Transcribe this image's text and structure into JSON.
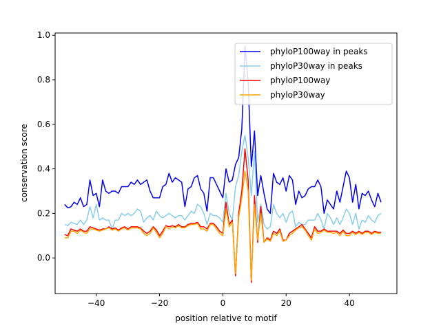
{
  "chart_data": {
    "type": "line",
    "title": "",
    "xlabel": "position relative to motif",
    "ylabel": "conservation score",
    "xlim": [
      -53,
      55
    ],
    "ylim": [
      -0.16,
      1.01
    ],
    "grid": false,
    "legend_position": "top-right",
    "x_ticks": [
      -40,
      -20,
      0,
      20,
      40
    ],
    "y_ticks": [
      0.0,
      0.2,
      0.4,
      0.6,
      0.8,
      1.0
    ],
    "x_tick_labels": [
      "−40",
      "−20",
      "0",
      "20",
      "40"
    ],
    "y_tick_labels": [
      "0.0",
      "0.2",
      "0.4",
      "0.6",
      "0.8",
      "1.0"
    ],
    "x_start": -50,
    "x_step": 1,
    "series": [
      {
        "name": "phyloP100way in peaks",
        "color": "#0000ee",
        "values": [
          0.24,
          0.225,
          0.23,
          0.25,
          0.24,
          0.27,
          0.23,
          0.24,
          0.35,
          0.28,
          0.29,
          0.23,
          0.35,
          0.3,
          0.29,
          0.3,
          0.3,
          0.29,
          0.32,
          0.32,
          0.32,
          0.34,
          0.33,
          0.35,
          0.33,
          0.34,
          0.35,
          0.3,
          0.27,
          0.27,
          0.27,
          0.32,
          0.33,
          0.38,
          0.34,
          0.36,
          0.35,
          0.34,
          0.23,
          0.31,
          0.32,
          0.36,
          0.37,
          0.31,
          0.29,
          0.21,
          0.36,
          0.36,
          0.33,
          0.3,
          0.27,
          0.4,
          0.34,
          0.35,
          0.42,
          0.45,
          0.58,
          0.95,
          0.79,
          0.41,
          0.57,
          0.28,
          0.37,
          0.29,
          0.22,
          0.2,
          0.38,
          0.34,
          0.33,
          0.36,
          0.3,
          0.37,
          0.35,
          0.24,
          0.3,
          0.27,
          0.28,
          0.31,
          0.32,
          0.32,
          0.35,
          0.32,
          0.2,
          0.26,
          0.24,
          0.22,
          0.3,
          0.25,
          0.32,
          0.39,
          0.36,
          0.25,
          0.33,
          0.22,
          0.29,
          0.28,
          0.3,
          0.26,
          0.23,
          0.29,
          0.25
        ],
        "values_note": "x = -50..50"
      },
      {
        "name": "phyloP30way in peaks",
        "color": "#87ceeb",
        "values": [
          0.15,
          0.145,
          0.16,
          0.155,
          0.15,
          0.17,
          0.15,
          0.17,
          0.23,
          0.18,
          0.24,
          0.17,
          0.18,
          0.17,
          0.17,
          0.13,
          0.17,
          0.17,
          0.2,
          0.19,
          0.2,
          0.19,
          0.2,
          0.22,
          0.21,
          0.16,
          0.18,
          0.19,
          0.17,
          0.21,
          0.19,
          0.18,
          0.19,
          0.2,
          0.19,
          0.18,
          0.19,
          0.19,
          0.17,
          0.19,
          0.21,
          0.2,
          0.24,
          0.23,
          0.2,
          0.15,
          0.2,
          0.19,
          0.19,
          0.18,
          0.16,
          0.29,
          0.2,
          0.17,
          0.32,
          0.37,
          0.48,
          0.55,
          0.45,
          0.28,
          0.48,
          0.16,
          0.24,
          0.15,
          0.13,
          0.14,
          0.24,
          0.2,
          0.18,
          0.2,
          0.16,
          0.2,
          0.21,
          0.14,
          0.16,
          0.15,
          0.15,
          0.17,
          0.17,
          0.17,
          0.2,
          0.17,
          0.13,
          0.2,
          0.18,
          0.15,
          0.18,
          0.15,
          0.18,
          0.22,
          0.2,
          0.15,
          0.2,
          0.13,
          0.17,
          0.16,
          0.19,
          0.17,
          0.16,
          0.19,
          0.2
        ],
        "values_note": "x = -50..50"
      },
      {
        "name": "phyloP100way",
        "color": "#ff0000",
        "values": [
          0.105,
          0.1,
          0.13,
          0.125,
          0.12,
          0.13,
          0.12,
          0.12,
          0.14,
          0.135,
          0.13,
          0.125,
          0.13,
          0.13,
          0.14,
          0.13,
          0.135,
          0.125,
          0.135,
          0.14,
          0.13,
          0.14,
          0.14,
          0.14,
          0.135,
          0.12,
          0.11,
          0.12,
          0.14,
          0.125,
          0.1,
          0.12,
          0.145,
          0.14,
          0.145,
          0.14,
          0.15,
          0.14,
          0.14,
          0.15,
          0.155,
          0.155,
          0.16,
          0.14,
          0.14,
          0.13,
          0.155,
          0.155,
          0.14,
          0.12,
          0.11,
          0.25,
          0.15,
          0.17,
          -0.08,
          0.2,
          0.3,
          0.49,
          0.35,
          -0.11,
          0.28,
          0.07,
          0.23,
          0.07,
          0.09,
          0.08,
          0.12,
          0.11,
          0.13,
          0.08,
          0.08,
          0.11,
          0.12,
          0.13,
          0.14,
          0.15,
          0.13,
          0.11,
          0.09,
          0.14,
          0.12,
          0.12,
          0.13,
          0.12,
          0.12,
          0.12,
          0.12,
          0.11,
          0.125,
          0.11,
          0.11,
          0.12,
          0.11,
          0.12,
          0.11,
          0.12,
          0.12,
          0.11,
          0.12,
          0.115,
          0.115
        ],
        "values_note": "x = -50..50"
      },
      {
        "name": "phyloP30way",
        "color": "#ffa500",
        "values": [
          0.09,
          0.09,
          0.12,
          0.12,
          0.11,
          0.125,
          0.115,
          0.11,
          0.13,
          0.13,
          0.125,
          0.12,
          0.125,
          0.13,
          0.135,
          0.125,
          0.13,
          0.12,
          0.13,
          0.135,
          0.125,
          0.135,
          0.135,
          0.135,
          0.13,
          0.11,
          0.1,
          0.11,
          0.135,
          0.115,
          0.09,
          0.11,
          0.14,
          0.13,
          0.14,
          0.135,
          0.145,
          0.135,
          0.135,
          0.145,
          0.15,
          0.15,
          0.155,
          0.13,
          0.13,
          0.12,
          0.15,
          0.15,
          0.13,
          0.11,
          0.1,
          0.22,
          0.14,
          0.16,
          -0.07,
          0.18,
          0.27,
          0.39,
          0.3,
          -0.1,
          0.24,
          0.08,
          0.2,
          0.07,
          0.085,
          0.075,
          0.11,
          0.1,
          0.12,
          0.075,
          0.08,
          0.1,
          0.11,
          0.125,
          0.135,
          0.14,
          0.125,
          0.1,
          0.08,
          0.13,
          0.11,
          0.115,
          0.125,
          0.115,
          0.115,
          0.11,
          0.115,
          0.1,
          0.12,
          0.1,
          0.1,
          0.115,
          0.105,
          0.115,
          0.105,
          0.115,
          0.115,
          0.105,
          0.115,
          0.11,
          0.11
        ],
        "values_note": "x = -50..50"
      }
    ]
  }
}
